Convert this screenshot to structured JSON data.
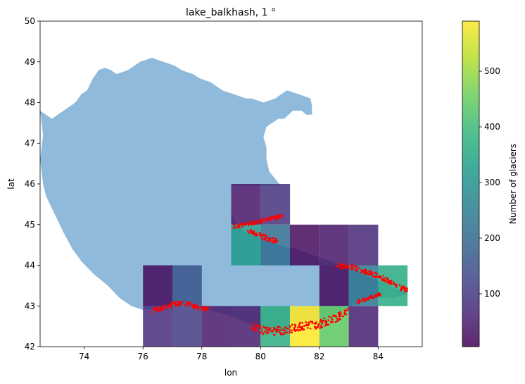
{
  "chart_data": {
    "type": "heatmap",
    "title": "lake_balkhash, 1 °",
    "xlabel": "lon",
    "ylabel": "lat",
    "xlim": [
      72.5,
      85.5
    ],
    "ylim": [
      42,
      50
    ],
    "xticks": [
      74,
      76,
      78,
      80,
      82,
      84
    ],
    "yticks": [
      42,
      43,
      44,
      45,
      46,
      47,
      48,
      49,
      50
    ],
    "grid": false,
    "colorbar": {
      "label": "Number of glaciers",
      "colormap": "viridis",
      "range": [
        5,
        590
      ],
      "ticks": [
        100,
        200,
        300,
        400,
        500
      ]
    },
    "cell_alpha": 0.85,
    "cells": [
      {
        "lon": 79,
        "lat": 45,
        "count": 40
      },
      {
        "lon": 80,
        "lat": 45,
        "count": 90
      },
      {
        "lon": 79,
        "lat": 44,
        "count": 320
      },
      {
        "lon": 80,
        "lat": 44,
        "count": 210
      },
      {
        "lon": 81,
        "lat": 44,
        "count": 20
      },
      {
        "lon": 82,
        "lat": 44,
        "count": 40
      },
      {
        "lon": 83,
        "lat": 44,
        "count": 70
      },
      {
        "lon": 76,
        "lat": 43,
        "count": 20
      },
      {
        "lon": 77,
        "lat": 43,
        "count": 160
      },
      {
        "lon": 82,
        "lat": 43,
        "count": 20
      },
      {
        "lon": 83,
        "lat": 43,
        "count": 230
      },
      {
        "lon": 84,
        "lat": 43,
        "count": 360
      },
      {
        "lon": 76,
        "lat": 42,
        "count": 80
      },
      {
        "lon": 77,
        "lat": 42,
        "count": 110
      },
      {
        "lon": 78,
        "lat": 42,
        "count": 45
      },
      {
        "lon": 79,
        "lat": 42,
        "count": 50
      },
      {
        "lon": 80,
        "lat": 42,
        "count": 370
      },
      {
        "lon": 81,
        "lat": 42,
        "count": 590
      },
      {
        "lon": 82,
        "lat": 42,
        "count": 440
      },
      {
        "lon": 83,
        "lat": 42,
        "count": 55
      }
    ],
    "basin": {
      "color": "#8fbadb",
      "outline": [
        [
          72.5,
          47.8
        ],
        [
          72.7,
          47.7
        ],
        [
          72.9,
          47.6
        ],
        [
          73.1,
          47.7
        ],
        [
          73.3,
          47.8
        ],
        [
          73.5,
          47.9
        ],
        [
          73.7,
          48.0
        ],
        [
          73.9,
          48.2
        ],
        [
          74.1,
          48.3
        ],
        [
          74.3,
          48.6
        ],
        [
          74.5,
          48.8
        ],
        [
          74.7,
          48.85
        ],
        [
          74.9,
          48.8
        ],
        [
          75.1,
          48.7
        ],
        [
          75.3,
          48.75
        ],
        [
          75.5,
          48.8
        ],
        [
          75.7,
          48.9
        ],
        [
          75.9,
          49.0
        ],
        [
          76.1,
          49.05
        ],
        [
          76.3,
          49.1
        ],
        [
          76.5,
          49.05
        ],
        [
          76.7,
          49.0
        ],
        [
          76.9,
          48.95
        ],
        [
          77.1,
          48.9
        ],
        [
          77.3,
          48.8
        ],
        [
          77.5,
          48.75
        ],
        [
          77.7,
          48.7
        ],
        [
          77.9,
          48.6
        ],
        [
          78.1,
          48.55
        ],
        [
          78.3,
          48.5
        ],
        [
          78.5,
          48.4
        ],
        [
          78.7,
          48.3
        ],
        [
          78.9,
          48.25
        ],
        [
          79.1,
          48.2
        ],
        [
          79.3,
          48.15
        ],
        [
          79.5,
          48.1
        ],
        [
          79.7,
          48.1
        ],
        [
          79.9,
          48.05
        ],
        [
          80.1,
          48.0
        ],
        [
          80.3,
          48.05
        ],
        [
          80.5,
          48.1
        ],
        [
          80.7,
          48.2
        ],
        [
          80.9,
          48.3
        ],
        [
          81.1,
          48.25
        ],
        [
          81.3,
          48.2
        ],
        [
          81.5,
          48.15
        ],
        [
          81.7,
          48.1
        ],
        [
          81.75,
          47.9
        ],
        [
          81.75,
          47.7
        ],
        [
          81.55,
          47.7
        ],
        [
          81.4,
          47.8
        ],
        [
          81.1,
          47.8
        ],
        [
          80.8,
          47.6
        ],
        [
          80.6,
          47.6
        ],
        [
          80.2,
          47.4
        ],
        [
          80.1,
          47.15
        ],
        [
          80.2,
          46.9
        ],
        [
          80.2,
          46.6
        ],
        [
          80.3,
          46.3
        ],
        [
          80.7,
          45.95
        ],
        [
          80.3,
          45.95
        ],
        [
          80,
          45.95
        ],
        [
          79.7,
          45.95
        ],
        [
          79.4,
          45.95
        ],
        [
          79,
          45.95
        ],
        [
          79,
          45.6
        ],
        [
          79,
          45.3
        ],
        [
          79.2,
          45.0
        ],
        [
          79.5,
          44.8
        ],
        [
          79.9,
          44.7
        ],
        [
          80.2,
          44.6
        ],
        [
          80.6,
          44.5
        ],
        [
          81.2,
          44.4
        ],
        [
          81.8,
          44.25
        ],
        [
          82.4,
          44.1
        ],
        [
          83.0,
          43.95
        ],
        [
          83.6,
          43.75
        ],
        [
          84.1,
          43.6
        ],
        [
          84.5,
          43.45
        ],
        [
          84.9,
          43.35
        ],
        [
          85.0,
          43.35
        ],
        [
          85.0,
          43.3
        ],
        [
          84.5,
          43.2
        ],
        [
          83.9,
          43.2
        ],
        [
          83.4,
          43.15
        ],
        [
          83.1,
          43.0
        ],
        [
          82.5,
          42.75
        ],
        [
          82.0,
          42.55
        ],
        [
          81.5,
          42.45
        ],
        [
          81.0,
          42.4
        ],
        [
          80.5,
          42.35
        ],
        [
          80.0,
          42.45
        ],
        [
          79.5,
          42.6
        ],
        [
          79.0,
          42.75
        ],
        [
          78.5,
          42.85
        ],
        [
          78.0,
          42.95
        ],
        [
          77.5,
          43.0
        ],
        [
          77.0,
          43.0
        ],
        [
          76.5,
          42.95
        ],
        [
          76.0,
          42.9
        ],
        [
          75.6,
          43.0
        ],
        [
          75.2,
          43.2
        ],
        [
          74.8,
          43.5
        ],
        [
          74.3,
          43.8
        ],
        [
          73.9,
          44.1
        ],
        [
          73.6,
          44.4
        ],
        [
          73.3,
          44.8
        ],
        [
          73.1,
          45.1
        ],
        [
          72.9,
          45.4
        ],
        [
          72.7,
          45.7
        ],
        [
          72.6,
          46.0
        ],
        [
          72.55,
          46.3
        ],
        [
          72.5,
          46.6
        ],
        [
          72.55,
          46.9
        ],
        [
          72.6,
          47.2
        ],
        [
          72.55,
          47.5
        ],
        [
          72.5,
          47.8
        ]
      ]
    },
    "glacier_color": "#ff0000",
    "glacier_bands": [
      {
        "points": [
          [
            76.3,
            42.87
          ],
          [
            76.7,
            42.97
          ],
          [
            77.0,
            43.03
          ],
          [
            77.4,
            43.08
          ],
          [
            77.8,
            42.98
          ],
          [
            78.2,
            42.92
          ]
        ],
        "spread": 0.06
      },
      {
        "points": [
          [
            79.1,
            44.95
          ],
          [
            79.6,
            45.03
          ],
          [
            80.1,
            45.1
          ],
          [
            80.7,
            45.2
          ]
        ],
        "spread": 0.05
      },
      {
        "points": [
          [
            79.6,
            44.85
          ],
          [
            80.1,
            44.7
          ],
          [
            80.6,
            44.58
          ]
        ],
        "spread": 0.06
      },
      {
        "points": [
          [
            79.7,
            42.5
          ],
          [
            80.2,
            42.38
          ],
          [
            80.8,
            42.4
          ],
          [
            81.4,
            42.5
          ],
          [
            82.0,
            42.55
          ],
          [
            82.5,
            42.68
          ],
          [
            83.0,
            42.88
          ]
        ],
        "spread": 0.1
      },
      {
        "points": [
          [
            82.6,
            44.0
          ],
          [
            83.2,
            43.93
          ],
          [
            83.7,
            43.82
          ],
          [
            84.2,
            43.68
          ],
          [
            84.6,
            43.5
          ],
          [
            85.0,
            43.38
          ]
        ],
        "spread": 0.06
      },
      {
        "points": [
          [
            83.3,
            43.1
          ],
          [
            83.7,
            43.2
          ],
          [
            84.1,
            43.3
          ]
        ],
        "spread": 0.04
      }
    ]
  }
}
